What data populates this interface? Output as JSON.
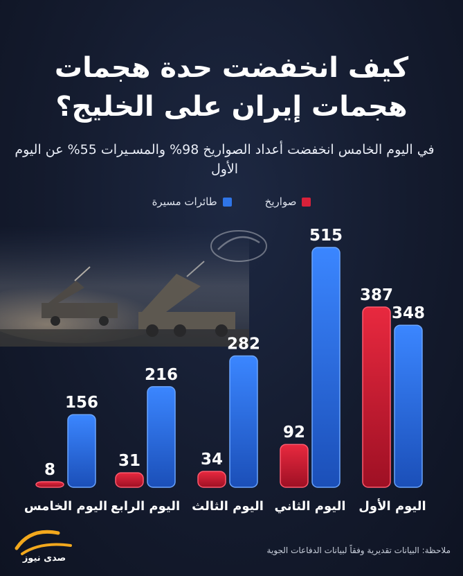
{
  "title": "كيف انخفضت حدة هجمات هجمات إيران على الخليج؟",
  "subtitle": "في اليوم الخامس انخفضت أعداد الصواريخ 98% والمسـيرات 55% عن اليوم الأول",
  "note": "ملاحظة: البيانات تقديرية وفقاً لبيانات الدفاعات الجوية",
  "logo_text": "صدى نيوز",
  "colors": {
    "missiles": "#d8213a",
    "drones": "#2f75e8",
    "background": "#141b2e"
  },
  "chart_data": {
    "type": "bar",
    "categories": [
      "اليوم الأول",
      "اليوم الثاني",
      "اليوم الثالث",
      "اليوم الرابع",
      "اليوم الخامس"
    ],
    "series": [
      {
        "name": "صواريخ",
        "values": [
          387,
          92,
          34,
          31,
          8
        ]
      },
      {
        "name": "طائرات مسيرة",
        "values": [
          348,
          515,
          282,
          216,
          156
        ]
      }
    ],
    "ylim": [
      0,
      515
    ],
    "grid": false,
    "legend": "top-center",
    "category_order": "right-to-left"
  }
}
